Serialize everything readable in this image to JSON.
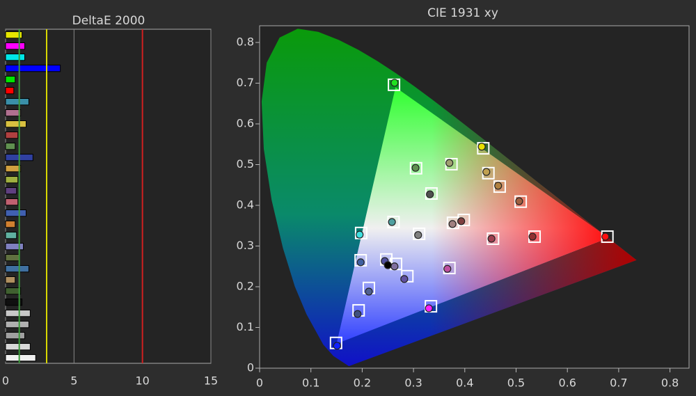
{
  "chart_data": [
    {
      "type": "bar",
      "orientation": "horizontal",
      "title": "DeltaE 2000",
      "values": [
        1.2,
        1.4,
        1.4,
        4.0,
        0.7,
        0.6,
        1.7,
        1.1,
        1.5,
        0.9,
        0.7,
        2.0,
        1.1,
        0.9,
        0.8,
        0.9,
        1.5,
        0.7,
        0.8,
        1.3,
        1.0,
        1.7,
        0.7,
        1.1,
        1.2,
        1.8,
        1.7,
        1.4,
        1.8,
        2.2
      ],
      "colors": [
        "#e6e600",
        "#ff00ff",
        "#00e6e6",
        "#0000ff",
        "#00e600",
        "#ff0000",
        "#3a8fa8",
        "#b07090",
        "#d8c040",
        "#b04040",
        "#609050",
        "#3040a0",
        "#d0a040",
        "#a0b040",
        "#604080",
        "#c06070",
        "#4060b0",
        "#d08030",
        "#60b0a0",
        "#8080c0",
        "#607040",
        "#4070a0",
        "#b09060",
        "#406030",
        "#101010",
        "#c8c8c8",
        "#b0b0b0",
        "#a0a0a0",
        "#d8d8d8",
        "#f0f0f0"
      ],
      "xlim": [
        0,
        15
      ],
      "xticks": [
        0,
        5,
        10,
        15
      ],
      "grid": true,
      "reference_lines": [
        {
          "value": 1,
          "color": "#3a9a3a"
        },
        {
          "value": 3,
          "color": "#d8d800"
        },
        {
          "value": 10,
          "color": "#d02020"
        }
      ]
    },
    {
      "type": "scatter",
      "title": "CIE 1931 xy",
      "xlim": [
        0,
        0.84
      ],
      "ylim": [
        0,
        0.84
      ],
      "xticks": [
        0,
        0.1,
        0.2,
        0.3,
        0.4,
        0.5,
        0.6,
        0.7,
        0.8
      ],
      "yticks": [
        0,
        0.1,
        0.2,
        0.3,
        0.4,
        0.5,
        0.6,
        0.7,
        0.8
      ],
      "series": [
        {
          "marker": "square",
          "color": "#ffffff",
          "x": [
            0.262,
            0.436,
            0.678,
            0.149,
            0.198,
            0.334,
            0.311,
            0.305,
            0.374,
            0.335,
            0.446,
            0.468,
            0.509,
            0.261,
            0.377,
            0.398,
            0.455,
            0.536,
            0.197,
            0.247,
            0.266,
            0.288,
            0.37,
            0.213,
            0.193
          ],
          "y": [
            0.696,
            0.54,
            0.323,
            0.062,
            0.332,
            0.152,
            0.33,
            0.491,
            0.501,
            0.429,
            0.479,
            0.446,
            0.409,
            0.359,
            0.357,
            0.364,
            0.318,
            0.323,
            0.265,
            0.267,
            0.256,
            0.226,
            0.246,
            0.197,
            0.142
          ]
        },
        {
          "marker": "circle",
          "x": [
            0.263,
            0.433,
            0.674,
            0.151,
            0.195,
            0.33,
            0.309,
            0.304,
            0.37,
            0.332,
            0.442,
            0.465,
            0.506,
            0.258,
            0.376,
            0.393,
            0.452,
            0.532,
            0.197,
            0.244,
            0.263,
            0.282,
            0.366,
            0.213,
            0.191,
            0.25
          ],
          "y": [
            0.701,
            0.544,
            0.323,
            0.055,
            0.328,
            0.147,
            0.327,
            0.492,
            0.504,
            0.427,
            0.482,
            0.448,
            0.41,
            0.359,
            0.354,
            0.361,
            0.318,
            0.323,
            0.26,
            0.263,
            0.25,
            0.219,
            0.244,
            0.188,
            0.133,
            0.253
          ],
          "colors": [
            "#20e020",
            "#e8e000",
            "#ff1010",
            "#1020ff",
            "#40e0e0",
            "#ff20ff",
            "#808080",
            "#609050",
            "#a0a070",
            "#505050",
            "#c0a050",
            "#b08040",
            "#a06040",
            "#50a0a0",
            "#a08080",
            "#804040",
            "#a04050",
            "#903030",
            "#4060a0",
            "#5050a0",
            "#8070a0",
            "#6050a0",
            "#c050a0",
            "#506090",
            "#405080",
            "#000000"
          ]
        }
      ]
    }
  ]
}
